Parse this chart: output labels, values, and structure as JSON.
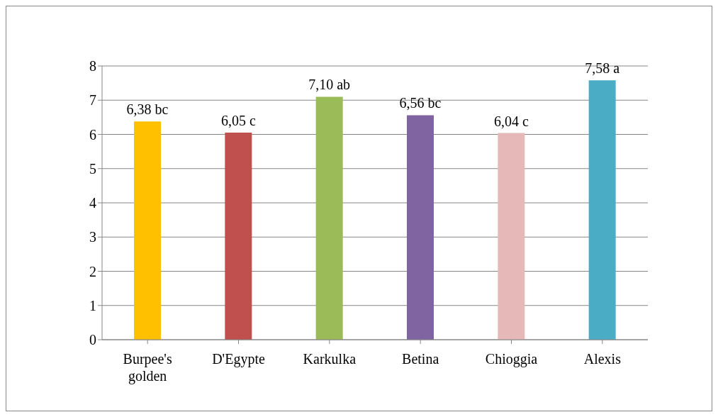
{
  "chart_data": {
    "type": "bar",
    "categories": [
      "Burpee's golden",
      "D'Egypte",
      "Karkulka",
      "Betina",
      "Chioggia",
      "Alexis"
    ],
    "values": [
      6.38,
      6.05,
      7.1,
      6.56,
      6.04,
      7.58
    ],
    "colors": [
      "#ffc000",
      "#c0504d",
      "#9bbb59",
      "#8064a2",
      "#e6b9b8",
      "#4bacc6"
    ],
    "value_labels": [
      "6,38 bc",
      "6,05 c",
      "7,10 ab",
      "6,56 bc",
      "6,04 c",
      "7,58 a"
    ],
    "ylim": [
      0,
      8
    ],
    "yticks": [
      0,
      1,
      2,
      3,
      4,
      5,
      6,
      7,
      8
    ],
    "grid": "y"
  }
}
